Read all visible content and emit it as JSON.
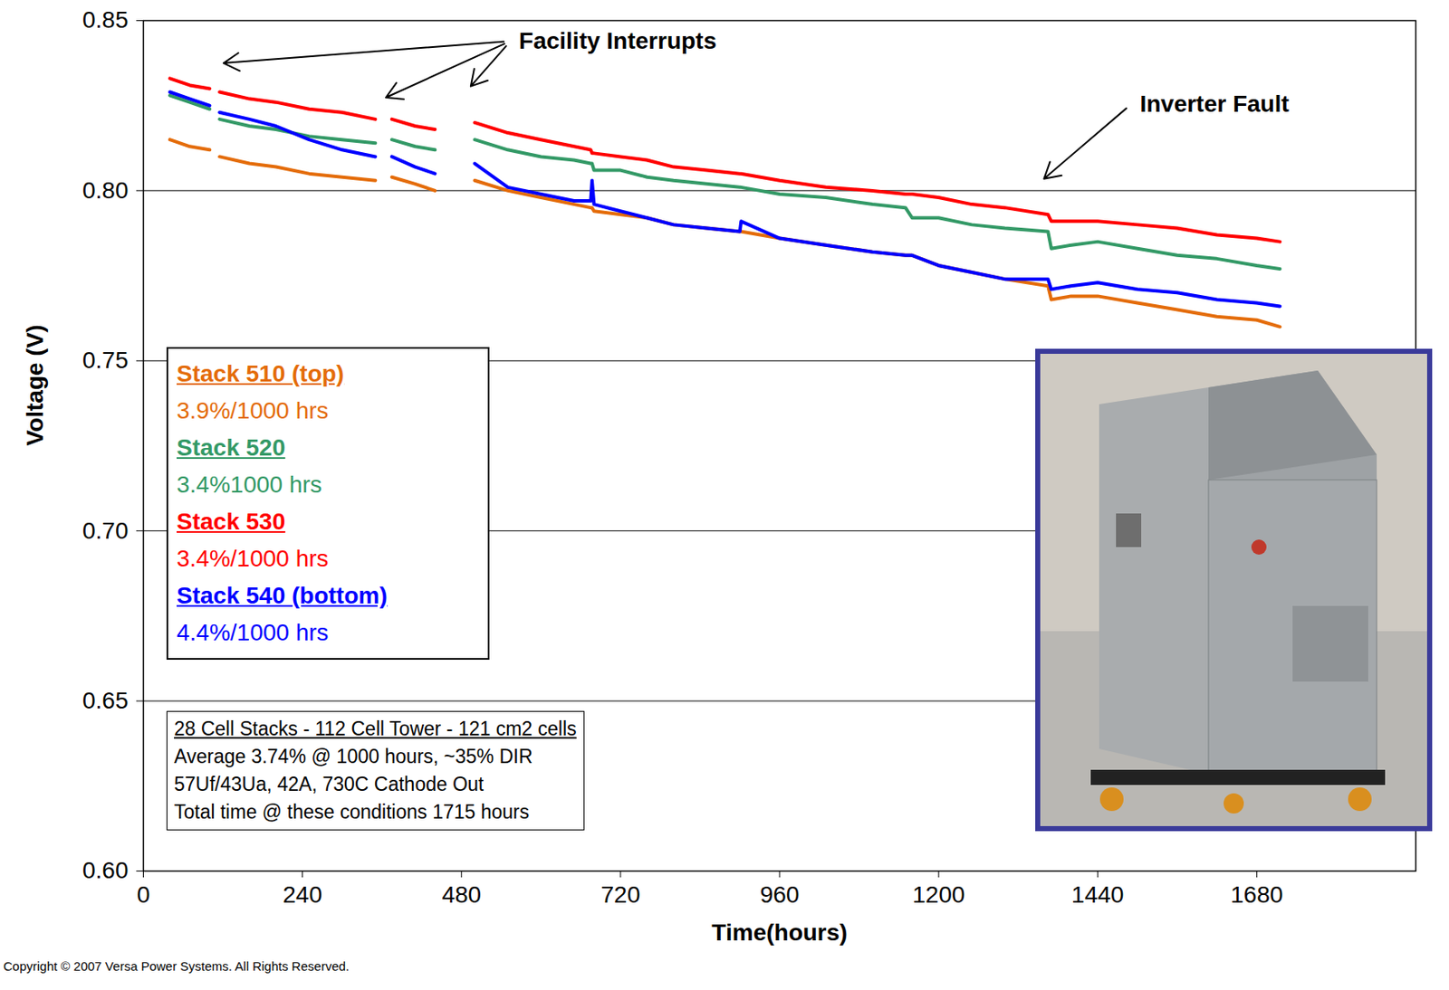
{
  "chart_data": {
    "type": "line",
    "x_label": "Time(hours)",
    "y_label": "Voltage (V)",
    "x": [
      40,
      70,
      100,
      107,
      115,
      160,
      200,
      250,
      300,
      350,
      362,
      375,
      410,
      440,
      470,
      500,
      550,
      600,
      650,
      675,
      677,
      680,
      720,
      760,
      800,
      850,
      900,
      902,
      960,
      1030,
      1100,
      1150,
      1160,
      1200,
      1250,
      1300,
      1365,
      1370,
      1400,
      1440,
      1500,
      1560,
      1620,
      1680,
      1715
    ],
    "series": [
      {
        "name": "Stack 510 (top)",
        "rate": "3.9%/1000 hrs",
        "color": "#e46c0a",
        "values": [
          0.815,
          0.813,
          0.812,
          null,
          0.81,
          0.808,
          0.807,
          0.805,
          0.804,
          0.803,
          null,
          0.804,
          0.802,
          0.8,
          null,
          0.803,
          0.8,
          0.798,
          0.796,
          0.795,
          0.795,
          0.794,
          0.793,
          0.792,
          0.79,
          0.789,
          0.788,
          0.788,
          0.786,
          0.784,
          0.782,
          0.781,
          0.781,
          0.778,
          0.776,
          0.774,
          0.772,
          0.768,
          0.769,
          0.769,
          0.767,
          0.765,
          0.763,
          0.762,
          0.76
        ]
      },
      {
        "name": "Stack 520",
        "rate": "3.4%1000 hrs",
        "color": "#339966",
        "values": [
          0.828,
          0.826,
          0.824,
          null,
          0.821,
          0.819,
          0.818,
          0.816,
          0.815,
          0.814,
          null,
          0.815,
          0.813,
          0.812,
          null,
          0.815,
          0.812,
          0.81,
          0.809,
          0.808,
          0.808,
          0.806,
          0.806,
          0.804,
          0.803,
          0.802,
          0.801,
          0.801,
          0.799,
          0.798,
          0.796,
          0.795,
          0.792,
          0.792,
          0.79,
          0.789,
          0.788,
          0.783,
          0.784,
          0.785,
          0.783,
          0.781,
          0.78,
          0.778,
          0.777
        ]
      },
      {
        "name": "Stack 530",
        "rate": "3.4%/1000 hrs",
        "color": "#ff0000",
        "values": [
          0.833,
          0.831,
          0.83,
          null,
          0.829,
          0.827,
          0.826,
          0.824,
          0.823,
          0.821,
          null,
          0.821,
          0.819,
          0.818,
          null,
          0.82,
          0.817,
          0.815,
          0.813,
          0.812,
          0.811,
          0.811,
          0.81,
          0.809,
          0.807,
          0.806,
          0.805,
          0.805,
          0.803,
          0.801,
          0.8,
          0.799,
          0.799,
          0.798,
          0.796,
          0.795,
          0.793,
          0.791,
          0.791,
          0.791,
          0.79,
          0.789,
          0.787,
          0.786,
          0.785
        ]
      },
      {
        "name": "Stack 540 (bottom)",
        "rate": "4.4%/1000 hrs",
        "color": "#0000ff",
        "values": [
          0.829,
          0.827,
          0.825,
          null,
          0.823,
          0.821,
          0.819,
          0.815,
          0.812,
          0.81,
          null,
          0.81,
          0.807,
          0.805,
          null,
          0.808,
          0.801,
          0.799,
          0.797,
          0.797,
          0.803,
          0.796,
          0.794,
          0.792,
          0.79,
          0.789,
          0.788,
          0.791,
          0.786,
          0.784,
          0.782,
          0.781,
          0.781,
          0.778,
          0.776,
          0.774,
          0.774,
          0.771,
          0.772,
          0.773,
          0.771,
          0.77,
          0.768,
          0.767,
          0.766
        ]
      }
    ],
    "xlim": [
      0,
      1920
    ],
    "xticks": [
      0,
      240,
      480,
      720,
      960,
      1200,
      1440,
      1680
    ],
    "ylim": [
      0.6,
      0.85
    ],
    "yticks": [
      {
        "value": 0.6,
        "label": "0.60"
      },
      0.65,
      {
        "value": 0.7,
        "label": "0.70"
      },
      0.75,
      {
        "value": 0.8,
        "label": "0.80"
      },
      0.85
    ],
    "grid": true,
    "legend": "left",
    "annotations": [
      {
        "text": "Facility Interrupts",
        "x": 554,
        "y": 0.844,
        "arrows": [
          {
            "x": 121,
            "y": 0.8375
          },
          {
            "x": 366,
            "y": 0.8274
          },
          {
            "x": 494,
            "y": 0.8307
          }
        ]
      },
      {
        "text": "Inverter Fault",
        "x": 1491,
        "y": 0.8255,
        "arrows": [
          {
            "x": 1359,
            "y": 0.8035
          }
        ]
      }
    ],
    "info_box": {
      "lines": [
        "28 Cell Stacks - 112 Cell Tower - 121 cm2 cells",
        "Average 3.74% @ 1000 hours, ~35% DIR",
        "57Uf/43Ua, 42A, 730C Cathode Out",
        "Total time @ these conditions 1715 hours"
      ]
    },
    "footer": "Copyright © 2007 Versa Power Systems. All Rights Reserved."
  }
}
